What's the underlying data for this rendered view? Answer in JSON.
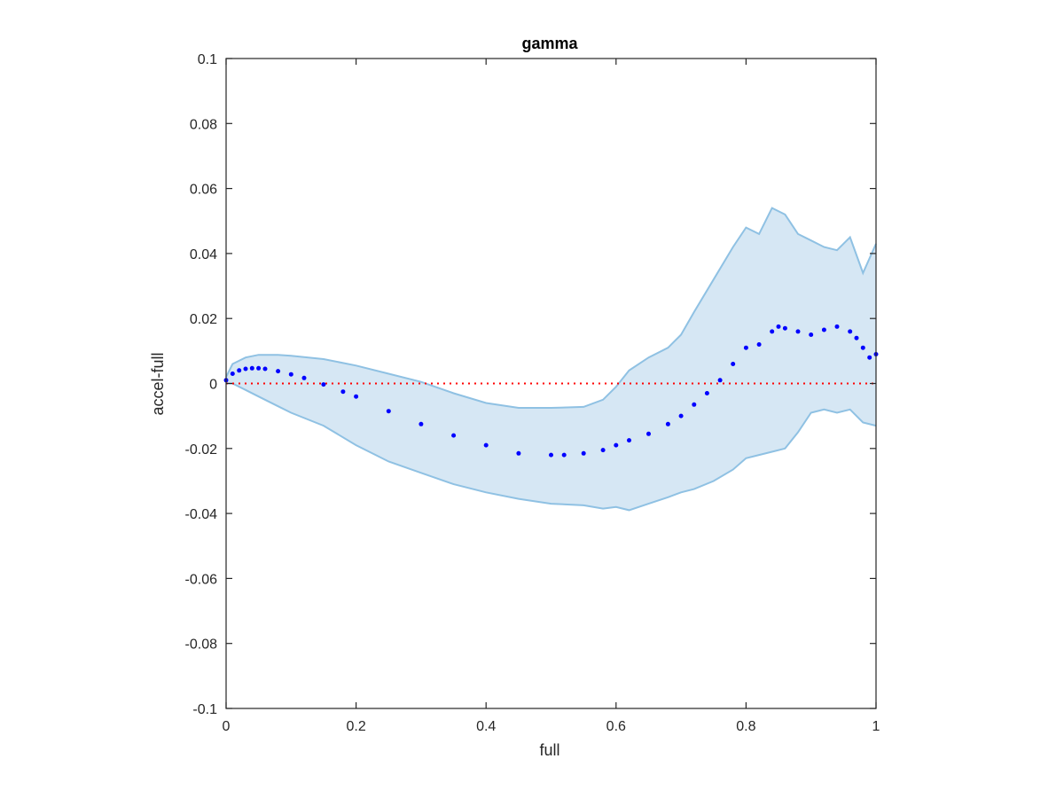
{
  "chart_data": {
    "type": "scatter",
    "title": "gamma",
    "xlabel": "full",
    "ylabel": "accel-full",
    "xlim": [
      0,
      1
    ],
    "ylim": [
      -0.1,
      0.1
    ],
    "x_ticks": [
      0,
      0.2,
      0.4,
      0.6,
      0.8,
      1
    ],
    "x_tick_labels": [
      "0",
      "0.2",
      "0.4",
      "0.6",
      "0.8",
      "1"
    ],
    "y_ticks": [
      -0.1,
      -0.08,
      -0.06,
      -0.04,
      -0.02,
      0,
      0.02,
      0.04,
      0.06,
      0.08,
      0.1
    ],
    "y_tick_labels": [
      "-0.1",
      "-0.08",
      "-0.06",
      "-0.04",
      "-0.02",
      "0",
      "0.02",
      "0.04",
      "0.06",
      "0.08",
      "0.1"
    ],
    "grid": false,
    "reference_line": {
      "y": 0,
      "style": "dotted",
      "color": "#ff0000"
    },
    "band": {
      "x": [
        0,
        0.01,
        0.03,
        0.05,
        0.08,
        0.1,
        0.15,
        0.2,
        0.25,
        0.3,
        0.35,
        0.4,
        0.45,
        0.5,
        0.55,
        0.58,
        0.6,
        0.62,
        0.65,
        0.68,
        0.7,
        0.72,
        0.75,
        0.78,
        0.8,
        0.82,
        0.84,
        0.86,
        0.88,
        0.9,
        0.92,
        0.94,
        0.96,
        0.98,
        1.0
      ],
      "upper": [
        0.002,
        0.006,
        0.008,
        0.0088,
        0.0088,
        0.0085,
        0.0075,
        0.0055,
        0.003,
        0.0005,
        -0.003,
        -0.006,
        -0.0075,
        -0.0075,
        -0.0072,
        -0.005,
        -0.001,
        0.004,
        0.008,
        0.011,
        0.015,
        0.022,
        0.032,
        0.042,
        0.048,
        0.046,
        0.054,
        0.052,
        0.046,
        0.044,
        0.042,
        0.041,
        0.045,
        0.034,
        0.043
      ],
      "lower": [
        0.0,
        0.0,
        -0.002,
        -0.004,
        -0.007,
        -0.009,
        -0.013,
        -0.019,
        -0.024,
        -0.0275,
        -0.031,
        -0.0335,
        -0.0355,
        -0.037,
        -0.0375,
        -0.0385,
        -0.038,
        -0.039,
        -0.037,
        -0.035,
        -0.0335,
        -0.0325,
        -0.03,
        -0.0265,
        -0.023,
        -0.022,
        -0.021,
        -0.02,
        -0.015,
        -0.009,
        -0.008,
        -0.009,
        -0.008,
        -0.012,
        -0.013
      ],
      "fill": "#d6e7f4",
      "edge": "#8fc1e3"
    },
    "series": [
      {
        "marker": "dot",
        "color": "#0000ff",
        "x": [
          0,
          0.01,
          0.02,
          0.03,
          0.04,
          0.05,
          0.06,
          0.08,
          0.1,
          0.12,
          0.15,
          0.18,
          0.2,
          0.25,
          0.3,
          0.35,
          0.4,
          0.45,
          0.5,
          0.52,
          0.55,
          0.58,
          0.6,
          0.62,
          0.65,
          0.68,
          0.7,
          0.72,
          0.74,
          0.76,
          0.78,
          0.8,
          0.82,
          0.84,
          0.85,
          0.86,
          0.88,
          0.9,
          0.92,
          0.94,
          0.96,
          0.97,
          0.98,
          0.99,
          1.0
        ],
        "y": [
          0.001,
          0.003,
          0.004,
          0.0045,
          0.0047,
          0.0047,
          0.0045,
          0.0038,
          0.0028,
          0.0017,
          -0.0003,
          -0.0025,
          -0.004,
          -0.0085,
          -0.0125,
          -0.016,
          -0.019,
          -0.0215,
          -0.022,
          -0.022,
          -0.0215,
          -0.0205,
          -0.019,
          -0.0175,
          -0.0155,
          -0.0125,
          -0.01,
          -0.0065,
          -0.003,
          0.001,
          0.006,
          0.011,
          0.012,
          0.016,
          0.0175,
          0.017,
          0.016,
          0.015,
          0.0165,
          0.0175,
          0.016,
          0.014,
          0.011,
          0.008,
          0.009
        ]
      }
    ]
  }
}
